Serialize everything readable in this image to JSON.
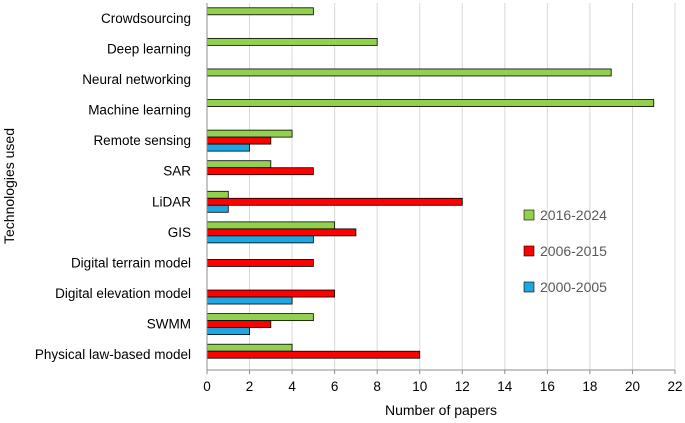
{
  "chart_data": {
    "type": "bar",
    "orientation": "horizontal",
    "xlabel": "Number of papers",
    "ylabel": "Technologies used",
    "xlim": [
      0,
      22
    ],
    "xticks": [
      0,
      2,
      4,
      6,
      8,
      10,
      12,
      14,
      16,
      18,
      20,
      22
    ],
    "grid": "vertical",
    "categories": [
      "Crowdsourcing",
      "Deep learning",
      "Neural networking",
      "Machine learning",
      "Remote sensing",
      "SAR",
      "LiDAR",
      "GIS",
      "Digital terrain model",
      "Digital elevation model",
      "SWMM",
      "Physical law-based model"
    ],
    "series": [
      {
        "name": "2016-2024",
        "color": "#92D050",
        "values": [
          5,
          8,
          19,
          21,
          4,
          3,
          1,
          6,
          0,
          0,
          5,
          4
        ]
      },
      {
        "name": "2006-2015",
        "color": "#FF0000",
        "values": [
          0,
          0,
          0,
          0,
          3,
          5,
          12,
          7,
          5,
          6,
          3,
          10
        ]
      },
      {
        "name": "2000-2005",
        "color": "#1EA7E1",
        "values": [
          0,
          0,
          0,
          0,
          2,
          0,
          1,
          5,
          0,
          4,
          2,
          0
        ]
      }
    ],
    "legend": {
      "position": "right-middle"
    }
  }
}
